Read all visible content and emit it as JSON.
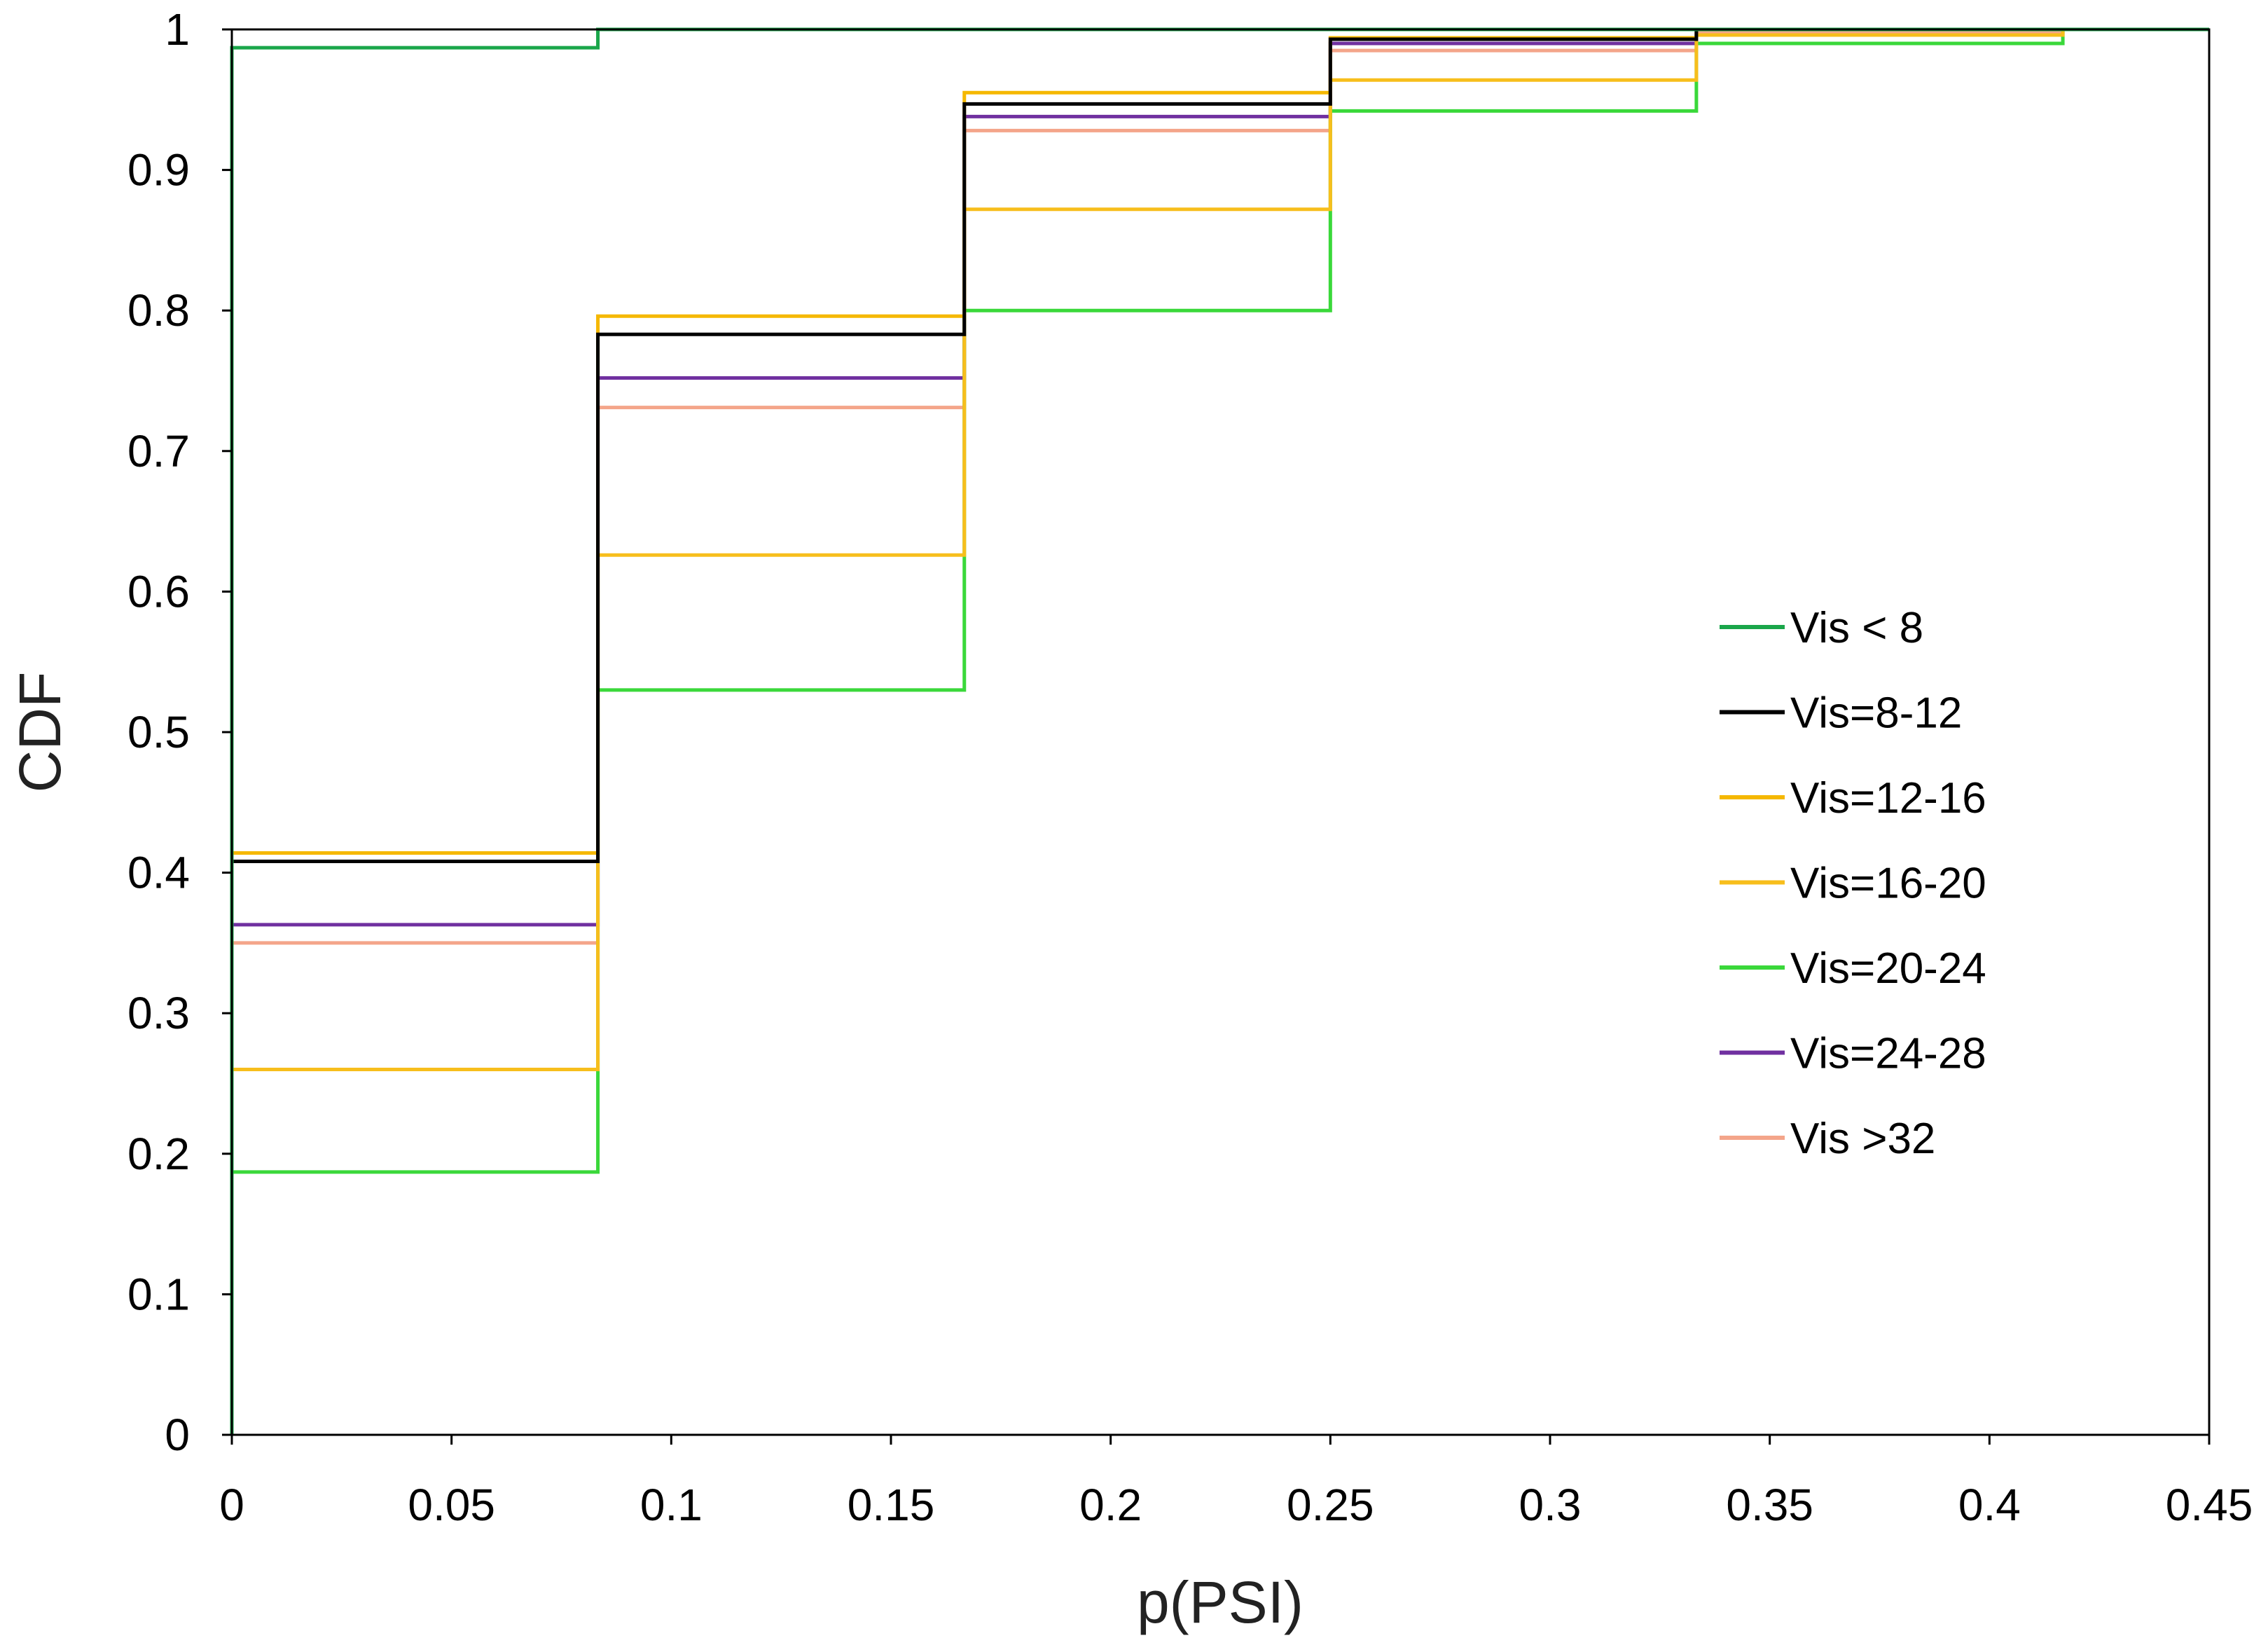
{
  "chart_data": {
    "type": "line",
    "subtype": "step",
    "title": "",
    "xlabel": "p(PSI)",
    "ylabel": "CDF",
    "xlim": [
      0,
      0.45
    ],
    "ylim": [
      0,
      1
    ],
    "xticks": [
      "0",
      "0.05",
      "0.1",
      "0.15",
      "0.2",
      "0.25",
      "0.3",
      "0.35",
      "0.4",
      "0.45"
    ],
    "yticks": [
      "0",
      "0.1",
      "0.2",
      "0.3",
      "0.4",
      "0.5",
      "0.6",
      "0.7",
      "0.8",
      "0.9",
      "1"
    ],
    "x": [
      0,
      0.0833,
      0.1667,
      0.25,
      0.3333,
      0.4167,
      0.45
    ],
    "legend_position": "right",
    "series": [
      {
        "name": "Vis < 8",
        "color": "#1aa64a",
        "values": [
          0.987,
          1.0,
          1.0,
          1.0,
          1.0,
          1.0,
          1.0
        ]
      },
      {
        "name": "Vis=8-12",
        "color": "#000000",
        "values": [
          0.408,
          0.783,
          0.947,
          0.993,
          1.0,
          1.0,
          1.0
        ]
      },
      {
        "name": "Vis=12-16",
        "color": "#f5b800",
        "values": [
          0.414,
          0.796,
          0.955,
          0.994,
          1.0,
          1.0,
          1.0
        ]
      },
      {
        "name": "Vis=16-20",
        "color": "#f7be1c",
        "values": [
          0.26,
          0.626,
          0.872,
          0.964,
          0.996,
          1.0,
          1.0
        ]
      },
      {
        "name": "Vis=20-24",
        "color": "#3ad83a",
        "values": [
          0.187,
          0.53,
          0.8,
          0.942,
          0.99,
          1.0,
          1.0
        ]
      },
      {
        "name": "Vis=24-28",
        "color": "#7030a0",
        "values": [
          0.363,
          0.752,
          0.938,
          0.99,
          1.0,
          1.0,
          1.0
        ]
      },
      {
        "name": "Vis >32",
        "color": "#f4a58a",
        "values": [
          0.35,
          0.731,
          0.928,
          0.985,
          0.998,
          1.0,
          1.0
        ]
      }
    ]
  }
}
